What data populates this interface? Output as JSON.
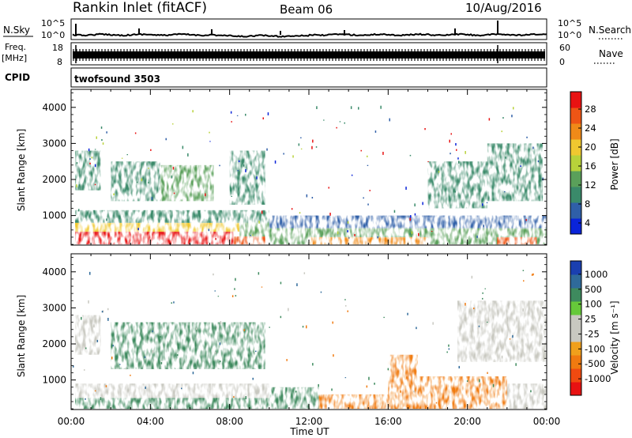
{
  "header": {
    "station": "Rankin Inlet (fitACF)",
    "beam": "Beam 06",
    "date": "10/Aug/2016"
  },
  "strips": {
    "nsky_label": "N.Sky",
    "nsearch_label": "N.Search",
    "nsky_ticks": [
      "10^5",
      "10^0"
    ],
    "nsearch_ticks": [
      "10^5",
      "10^0"
    ],
    "freq_label": "Freq.",
    "freq_unit": "[MHz]",
    "freq_ticks": [
      "18",
      "8"
    ],
    "nave_label": "Nave",
    "nave_ticks": [
      "60",
      "0"
    ],
    "cpid_label": "CPID",
    "cpid_text": "twofsound 3503"
  },
  "axes": {
    "ylabel": "Slant Range [km]",
    "xlabel": "Time UT",
    "x_ticks": [
      "00:00",
      "04:00",
      "08:00",
      "12:00",
      "16:00",
      "20:00",
      "00:00"
    ],
    "y_ticks": [
      "4000",
      "3000",
      "2000",
      "1000"
    ]
  },
  "colorbars": {
    "power": {
      "label": "Power [dB]",
      "ticks": [
        "28",
        "24",
        "20",
        "16",
        "12",
        "8",
        "4"
      ],
      "colors": [
        "#0a24d9",
        "#2f5fa8",
        "#3a8a6a",
        "#5aa05a",
        "#b8d23a",
        "#f0c830",
        "#f08a18",
        "#ee5515",
        "#e81212"
      ]
    },
    "velocity": {
      "label": "Velocity [m s⁻¹]",
      "ticks": [
        "1000",
        "500",
        "100",
        "25",
        "-25",
        "-100",
        "-500",
        "-1000"
      ],
      "colors": [
        "#1a3fb0",
        "#2f6a9a",
        "#3e8a5e",
        "#66c93a",
        "#c8c8c0",
        "#c8c8c0",
        "#f0a01c",
        "#f07a10",
        "#f04a10",
        "#e81212"
      ]
    }
  },
  "chart_data": [
    {
      "type": "heatmap",
      "name": "power",
      "xlabel": "Time UT",
      "ylabel": "Slant Range [km]",
      "xlim_hours": [
        0,
        24
      ],
      "ylim_km": [
        180,
        4500
      ],
      "colorbar_range_db": [
        0,
        30
      ],
      "regions_db": [
        {
          "t": [
            0.2,
            8.2
          ],
          "r": [
            200,
            550
          ],
          "db": 27
        },
        {
          "t": [
            8.2,
            9.8
          ],
          "r": [
            200,
            420
          ],
          "db": 26
        },
        {
          "t": [
            0.2,
            8.5
          ],
          "r": [
            550,
            800
          ],
          "db": 17
        },
        {
          "t": [
            8.5,
            10.0
          ],
          "r": [
            420,
            900
          ],
          "db": 12
        },
        {
          "t": [
            0.2,
            10.0
          ],
          "r": [
            800,
            1150
          ],
          "db": 7
        },
        {
          "t": [
            10.0,
            24.0
          ],
          "r": [
            200,
            650
          ],
          "db": 12
        },
        {
          "t": [
            10.0,
            24.0
          ],
          "r": [
            650,
            1000
          ],
          "db": 6
        },
        {
          "t": [
            12.0,
            18.0
          ],
          "r": [
            200,
            400
          ],
          "db": 22
        },
        {
          "t": [
            21.5,
            23.5
          ],
          "r": [
            200,
            400
          ],
          "db": 24
        },
        {
          "t": [
            0.2,
            1.5
          ],
          "r": [
            1700,
            2800
          ],
          "db": 8
        },
        {
          "t": [
            2.0,
            4.5
          ],
          "r": [
            1400,
            2500
          ],
          "db": 9
        },
        {
          "t": [
            4.5,
            7.2
          ],
          "r": [
            1400,
            2400
          ],
          "db": 10
        },
        {
          "t": [
            8.0,
            9.8
          ],
          "r": [
            1300,
            2800
          ],
          "db": 8
        },
        {
          "t": [
            18.0,
            21.0
          ],
          "r": [
            1200,
            2500
          ],
          "db": 8
        },
        {
          "t": [
            21.0,
            23.8
          ],
          "r": [
            1400,
            3000
          ],
          "db": 8
        }
      ]
    },
    {
      "type": "heatmap",
      "name": "velocity",
      "xlabel": "Time UT",
      "ylabel": "Slant Range [km]",
      "xlim_hours": [
        0,
        24
      ],
      "ylim_km": [
        180,
        4500
      ],
      "colorbar_range_ms": [
        -1000,
        1000
      ],
      "regions_ms": [
        {
          "t": [
            0.2,
            10.0
          ],
          "r": [
            200,
            900
          ],
          "v": 0
        },
        {
          "t": [
            0.2,
            10.0
          ],
          "r": [
            200,
            500
          ],
          "v": 200
        },
        {
          "t": [
            10.0,
            12.5
          ],
          "r": [
            200,
            800
          ],
          "v": 100
        },
        {
          "t": [
            12.5,
            17.5
          ],
          "r": [
            200,
            600
          ],
          "v": -300
        },
        {
          "t": [
            16.0,
            17.5
          ],
          "r": [
            600,
            1700
          ],
          "v": -400
        },
        {
          "t": [
            17.5,
            22.0
          ],
          "r": [
            200,
            1100
          ],
          "v": -300
        },
        {
          "t": [
            22.0,
            24.0
          ],
          "r": [
            200,
            900
          ],
          "v": 0
        },
        {
          "t": [
            2.0,
            9.8
          ],
          "r": [
            1300,
            2600
          ],
          "v": 200
        },
        {
          "t": [
            19.5,
            24.0
          ],
          "r": [
            1500,
            3200
          ],
          "v": 0
        },
        {
          "t": [
            0.2,
            1.5
          ],
          "r": [
            1700,
            2800
          ],
          "v": 0
        }
      ]
    }
  ]
}
